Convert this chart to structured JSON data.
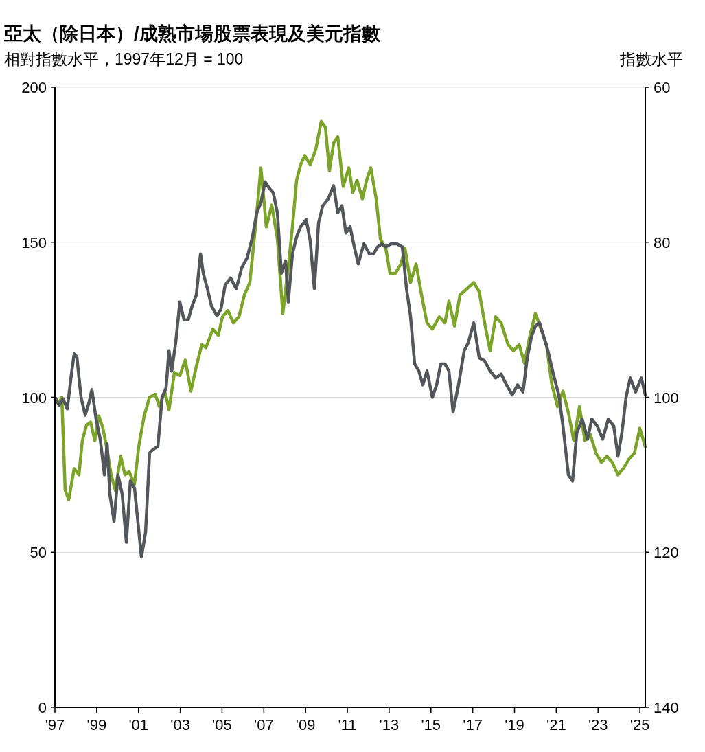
{
  "chart_data": {
    "type": "line",
    "title": "亞太（除日本）/成熟市場股票表現及美元指數",
    "ylabel": "相對指數水平，1997年12月 = 100",
    "y2label": "指數水平",
    "xlim": [
      1997,
      2025.26
    ],
    "xticks": [
      {
        "value": 1997,
        "label": "'97"
      },
      {
        "value": 1999,
        "label": "'99"
      },
      {
        "value": 2001,
        "label": "'01"
      },
      {
        "value": 2003,
        "label": "'03"
      },
      {
        "value": 2005,
        "label": "'05"
      },
      {
        "value": 2007,
        "label": "'07"
      },
      {
        "value": 2009,
        "label": "'09"
      },
      {
        "value": 2011,
        "label": "'11"
      },
      {
        "value": 2013,
        "label": "'13"
      },
      {
        "value": 2015,
        "label": "'15"
      },
      {
        "value": 2017,
        "label": "'17"
      },
      {
        "value": 2019,
        "label": "'19"
      },
      {
        "value": 2021,
        "label": "'21"
      },
      {
        "value": 2023,
        "label": "'23"
      },
      {
        "value": 2025,
        "label": "'25"
      }
    ],
    "ylim": [
      0,
      200
    ],
    "yticks": [
      0,
      50,
      100,
      150,
      200
    ],
    "y2lim": [
      140,
      60
    ],
    "y2ticks": [
      60,
      80,
      100,
      120,
      140
    ],
    "grid": "y",
    "line_style": "solid",
    "series": [
      {
        "color": "#7ba428",
        "x": [
          1997.0,
          1997.16,
          1997.33,
          1997.49,
          1997.66,
          1997.92,
          1998.15,
          1998.31,
          1998.51,
          1998.71,
          1998.91,
          1999.1,
          1999.3,
          1999.5,
          1999.69,
          1999.89,
          2000.15,
          2000.35,
          2000.55,
          2000.81,
          2001.01,
          2001.27,
          2001.53,
          2001.8,
          2002.0,
          2002.26,
          2002.46,
          2002.72,
          2002.98,
          2003.24,
          2003.51,
          2003.77,
          2004.03,
          2004.23,
          2004.56,
          2004.82,
          2005.02,
          2005.28,
          2005.54,
          2005.81,
          2006.07,
          2006.33,
          2006.6,
          2006.86,
          2007.12,
          2007.38,
          2007.65,
          2007.91,
          2008.17,
          2008.37,
          2008.57,
          2008.76,
          2008.96,
          2009.22,
          2009.49,
          2009.75,
          2009.95,
          2010.14,
          2010.34,
          2010.54,
          2010.8,
          2011.07,
          2011.26,
          2011.46,
          2011.72,
          2011.92,
          2012.12,
          2012.38,
          2012.58,
          2012.84,
          2013.04,
          2013.3,
          2013.56,
          2013.76,
          2014.02,
          2014.29,
          2014.55,
          2014.81,
          2015.07,
          2015.4,
          2015.67,
          2015.86,
          2016.13,
          2016.39,
          2016.72,
          2017.05,
          2017.31,
          2017.57,
          2017.83,
          2018.1,
          2018.36,
          2018.69,
          2018.95,
          2019.22,
          2019.48,
          2019.74,
          2020.0,
          2020.27,
          2020.53,
          2020.79,
          2021.06,
          2021.32,
          2021.58,
          2021.84,
          2022.11,
          2022.37,
          2022.63,
          2022.9,
          2023.16,
          2023.42,
          2023.68,
          2023.95,
          2024.21,
          2024.47,
          2024.74,
          2025.0,
          2025.26
        ],
        "values": [
          100,
          98,
          100,
          70,
          67,
          77,
          75,
          86,
          91,
          92,
          86,
          94,
          90,
          83,
          75,
          70,
          81,
          75,
          76,
          72,
          84,
          94,
          100,
          101,
          97,
          102,
          96,
          108,
          107,
          112,
          102,
          110,
          117,
          116,
          122,
          120,
          126,
          128,
          124,
          126,
          133,
          137,
          155,
          174,
          155,
          162,
          151,
          127,
          142,
          155,
          170,
          175,
          178,
          175,
          180,
          189,
          187,
          173,
          182,
          184,
          168,
          174,
          166,
          170,
          164,
          170,
          174,
          164,
          151,
          148,
          140,
          140,
          143,
          148,
          137,
          143,
          133,
          124,
          122,
          126,
          124,
          131,
          123,
          133,
          135,
          137,
          134,
          124,
          115,
          126,
          124,
          117,
          115,
          117,
          111,
          120,
          127,
          122,
          117,
          104,
          97,
          102,
          95,
          86,
          97,
          86,
          88,
          82,
          79,
          81,
          79,
          75,
          77,
          80,
          82,
          90,
          84
        ]
      },
      {
        "color": "#53565a",
        "axis": "y2",
        "x": [
          1997.0,
          1997.2,
          1997.39,
          1997.59,
          1997.79,
          1997.92,
          1998.05,
          1998.25,
          1998.45,
          1998.64,
          1998.77,
          1998.97,
          1999.17,
          1999.37,
          1999.5,
          1999.63,
          1999.83,
          2000.02,
          2000.22,
          2000.42,
          2000.61,
          2000.81,
          2001.14,
          2001.34,
          2001.53,
          2001.67,
          2001.93,
          2002.13,
          2002.32,
          2002.46,
          2002.59,
          2002.78,
          2002.98,
          2003.18,
          2003.38,
          2003.57,
          2003.77,
          2003.97,
          2004.1,
          2004.3,
          2004.49,
          2004.76,
          2004.95,
          2005.15,
          2005.41,
          2005.68,
          2005.94,
          2006.2,
          2006.46,
          2006.66,
          2006.86,
          2007.06,
          2007.25,
          2007.45,
          2007.65,
          2007.84,
          2008.04,
          2008.17,
          2008.37,
          2008.57,
          2008.76,
          2009.03,
          2009.22,
          2009.42,
          2009.62,
          2009.82,
          2010.08,
          2010.34,
          2010.54,
          2010.74,
          2010.93,
          2011.13,
          2011.33,
          2011.52,
          2011.79,
          2012.05,
          2012.25,
          2012.45,
          2012.64,
          2012.84,
          2013.1,
          2013.37,
          2013.63,
          2013.83,
          2014.02,
          2014.22,
          2014.42,
          2014.61,
          2014.81,
          2015.07,
          2015.27,
          2015.47,
          2015.67,
          2015.86,
          2016.06,
          2016.32,
          2016.59,
          2016.78,
          2017.05,
          2017.31,
          2017.57,
          2017.83,
          2018.1,
          2018.36,
          2018.62,
          2018.89,
          2019.15,
          2019.41,
          2019.61,
          2019.81,
          2020.0,
          2020.2,
          2020.4,
          2020.6,
          2020.86,
          2021.12,
          2021.32,
          2021.58,
          2021.78,
          2021.98,
          2022.24,
          2022.5,
          2022.7,
          2022.96,
          2023.22,
          2023.49,
          2023.75,
          2023.95,
          2024.14,
          2024.34,
          2024.54,
          2024.8,
          2025.07,
          2025.26
        ],
        "values": [
          100,
          101,
          100.2,
          101.5,
          97,
          94.4,
          94.8,
          100,
          102.3,
          100.6,
          99,
          102.8,
          105.4,
          110,
          106,
          112.5,
          116,
          110,
          112.5,
          118.7,
          110.8,
          111.7,
          120.6,
          117.4,
          107.2,
          106.8,
          106.3,
          100,
          98.8,
          94,
          96.6,
          93,
          87.7,
          90,
          90,
          88.2,
          86.8,
          81.5,
          84,
          86,
          88.2,
          89.5,
          88.6,
          85.5,
          84.6,
          86,
          83.3,
          82,
          79.3,
          76.2,
          74.9,
          72.2,
          73,
          73.6,
          76.2,
          84,
          82.4,
          87.7,
          81.5,
          79.3,
          78,
          77.1,
          79.8,
          86,
          77.5,
          75.3,
          74.4,
          72.7,
          76.2,
          75.3,
          78.8,
          78,
          80.6,
          82.8,
          80.2,
          81.5,
          81.5,
          80.6,
          80.2,
          80.6,
          80.2,
          80.2,
          80.6,
          86,
          89.5,
          95.7,
          96.6,
          98.4,
          96.6,
          100,
          98.4,
          95.7,
          95.7,
          96.6,
          101.9,
          98.4,
          94,
          93,
          90.4,
          94.9,
          95.3,
          96.6,
          97.5,
          97,
          98.4,
          99.7,
          98.4,
          99.3,
          94.9,
          92.2,
          90.8,
          90.4,
          92.2,
          94,
          97,
          99.7,
          103.7,
          110,
          110.8,
          104.6,
          102.8,
          105.4,
          102.8,
          103.7,
          105.4,
          102.8,
          103.7,
          107.6,
          104.6,
          100,
          97.5,
          99.3,
          97.5,
          99.7
        ]
      }
    ]
  }
}
